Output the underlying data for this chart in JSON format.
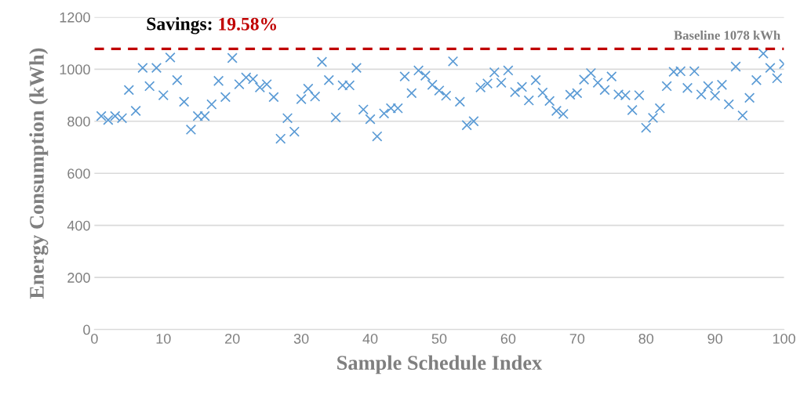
{
  "chart_data": {
    "type": "scatter",
    "xlabel": "Sample Schedule Index",
    "ylabel": "Energy Consumption (kWh)",
    "x": [
      1,
      2,
      3,
      4,
      5,
      6,
      7,
      8,
      9,
      10,
      11,
      12,
      13,
      14,
      15,
      16,
      17,
      18,
      19,
      20,
      21,
      22,
      23,
      24,
      25,
      26,
      27,
      28,
      29,
      30,
      31,
      32,
      33,
      34,
      35,
      36,
      37,
      38,
      39,
      40,
      41,
      42,
      43,
      44,
      45,
      46,
      47,
      48,
      49,
      50,
      51,
      52,
      53,
      54,
      55,
      56,
      57,
      58,
      59,
      60,
      61,
      62,
      63,
      64,
      65,
      66,
      67,
      68,
      69,
      70,
      71,
      72,
      73,
      74,
      75,
      76,
      77,
      78,
      79,
      80,
      81,
      82,
      83,
      84,
      85,
      86,
      87,
      88,
      89,
      90,
      91,
      92,
      93,
      94,
      95,
      96,
      97,
      98,
      99,
      100
    ],
    "series": [
      {
        "color": "#5b9bd5",
        "values": [
          820,
          805,
          820,
          812,
          920,
          840,
          1005,
          935,
          1005,
          900,
          1045,
          958,
          875,
          768,
          820,
          820,
          865,
          955,
          893,
          1043,
          942,
          968,
          962,
          930,
          942,
          893,
          733,
          812,
          760,
          885,
          925,
          895,
          1028,
          958,
          815,
          938,
          938,
          1005,
          845,
          808,
          742,
          830,
          850,
          850,
          972,
          908,
          995,
          975,
          940,
          918,
          898,
          1030,
          875,
          785,
          800,
          930,
          945,
          988,
          948,
          995,
          912,
          932,
          880,
          958,
          910,
          878,
          840,
          828,
          902,
          908,
          960,
          985,
          948,
          920,
          972,
          903,
          900,
          843,
          900,
          775,
          813,
          850,
          935,
          990,
          992,
          928,
          992,
          903,
          935,
          898,
          940,
          865,
          1010,
          822,
          890,
          958,
          1060,
          1005,
          965,
          1020
        ]
      }
    ],
    "marker": "cross",
    "xlim": [
      0,
      100
    ],
    "xticks": [
      0,
      10,
      20,
      30,
      40,
      50,
      60,
      70,
      80,
      90,
      100
    ],
    "ylim": [
      0,
      1200
    ],
    "yticks": [
      0,
      200,
      400,
      600,
      800,
      1000,
      1200
    ],
    "grid": "y",
    "ref_lines": [
      {
        "axis": "y",
        "value": 1078,
        "label": "Baseline 1078 kWh",
        "color": "#c00000",
        "line_style": "dashed"
      }
    ],
    "annotations": [
      "Savings:",
      "19.58%"
    ]
  }
}
